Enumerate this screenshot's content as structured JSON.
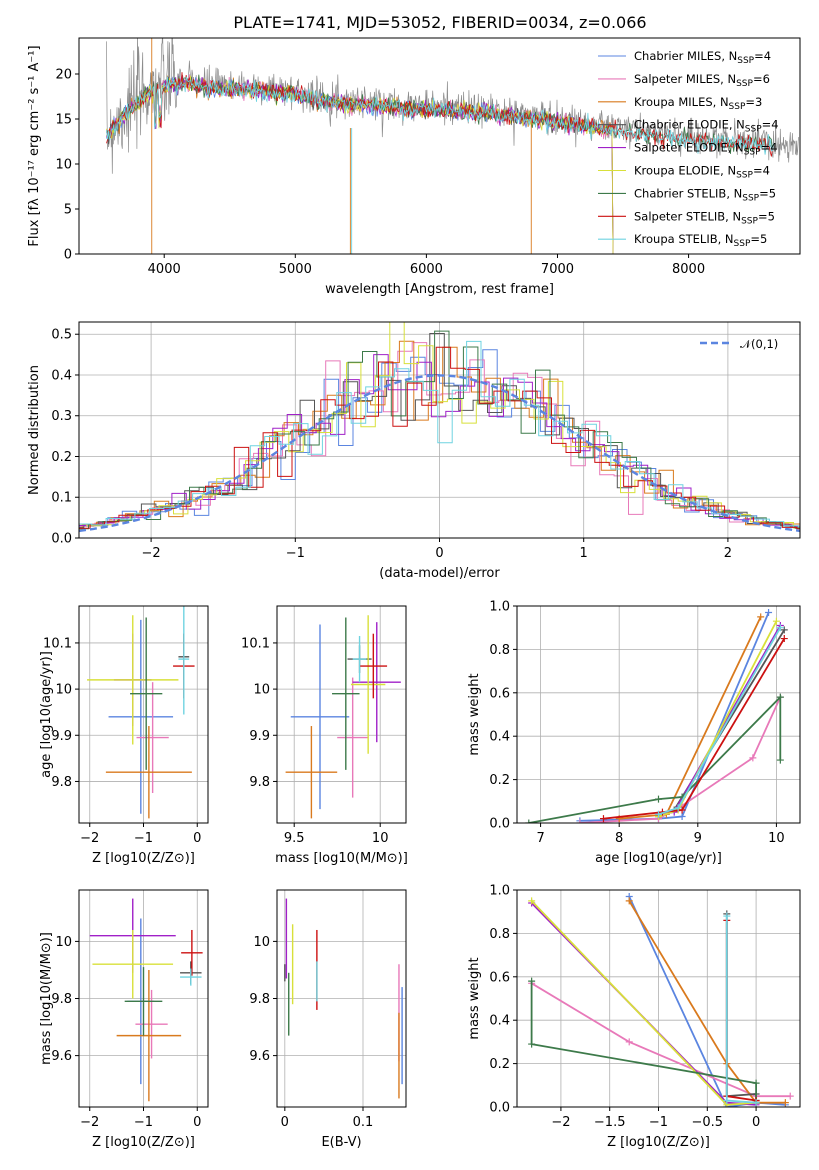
{
  "figure": {
    "title": "PLATE=1741, MJD=53052, FIBERID=0034, z=0.066"
  },
  "series_colors": {
    "Chabrier MILES": "#5b85e0",
    "Salpeter MILES": "#e879b9",
    "Kroupa MILES": "#d97a1e",
    "Chabrier ELODIE": "#555555",
    "Salpeter ELODIE": "#a020c8",
    "Kroupa ELODIE": "#d8e03a",
    "Chabrier STELIB": "#3d7a4a",
    "Salpeter STELIB": "#cc1111",
    "Kroupa STELIB": "#6fd3e0"
  },
  "chart_data": [
    {
      "id": "spectrum",
      "type": "line",
      "xlabel": "wavelength [Angstrom, rest frame]",
      "ylabel": "Flux [fλ 10⁻¹⁷ erg cm⁻² s⁻¹ A⁻¹]",
      "xlim": [
        3350,
        8850
      ],
      "ylim": [
        0,
        24
      ],
      "xticks": [
        4000,
        5000,
        6000,
        7000,
        8000
      ],
      "yticks": [
        0,
        5,
        10,
        15,
        20
      ],
      "grid": false,
      "legend_position": "top-right",
      "legend": [
        "Chabrier MILES, N_SSP=4",
        "Salpeter MILES, N_SSP=6",
        "Kroupa MILES, N_SSP=3",
        "Chabrier ELODIE, N_SSP=4",
        "Salpeter ELODIE, N_SSP=4",
        "Kroupa ELODIE, N_SSP=4",
        "Chabrier STELIB, N_SSP=5",
        "Salpeter STELIB, N_SSP=5",
        "Kroupa STELIB, N_SSP=5"
      ],
      "data_curve": {
        "x": [
          3560,
          3700,
          3900,
          4100,
          4300,
          4500,
          4700,
          4900,
          5100,
          5300,
          5500,
          5700,
          5900,
          6100,
          6300,
          6500,
          6700,
          6900,
          7100,
          7300,
          7500,
          7700,
          7900,
          8100,
          8400,
          8850
        ],
        "y": [
          13.5,
          15.8,
          18.5,
          19.5,
          19.0,
          18.7,
          18.6,
          18.3,
          17.8,
          17.2,
          17.0,
          16.8,
          16.5,
          16.4,
          16.2,
          16.0,
          15.6,
          15.3,
          14.8,
          14.4,
          13.9,
          13.6,
          13.2,
          13.0,
          12.6,
          12.2
        ]
      }
    },
    {
      "id": "residuals",
      "type": "histogram",
      "xlabel": "(data-model)/error",
      "ylabel": "Normed distribution",
      "xlim": [
        -2.5,
        2.5
      ],
      "ylim": [
        0,
        0.53
      ],
      "xticks": [
        -2,
        -1,
        0,
        1,
        2
      ],
      "yticks": [
        0.0,
        0.1,
        0.2,
        0.3,
        0.4,
        0.5
      ],
      "grid": true,
      "legend_position": "top-right",
      "reference_curve": "𝒩(0,1)",
      "reference": {
        "mean": 0,
        "sigma": 1
      }
    },
    {
      "id": "age-vs-Z",
      "type": "scatter",
      "xlabel": "Z [log10(Z/Z⊙)]",
      "ylabel": "age  [log10(age/yr)]",
      "xlim": [
        -2.2,
        0.2
      ],
      "ylim": [
        9.71,
        10.18
      ],
      "xticks": [
        -2,
        -1,
        0
      ],
      "yticks": [
        9.8,
        9.9,
        10.0,
        10.1
      ],
      "grid": true,
      "points": [
        {
          "series": "Chabrier MILES",
          "x": -1.05,
          "xerr": 0.6,
          "y": 9.94,
          "yerr": 0.21
        },
        {
          "series": "Salpeter MILES",
          "x": -0.83,
          "xerr": 0.3,
          "y": 9.895,
          "yerr": 0.12
        },
        {
          "series": "Kroupa MILES",
          "x": -0.9,
          "xerr": 0.8,
          "y": 9.82,
          "yerr": 0.1
        },
        {
          "series": "Chabrier ELODIE",
          "x": -0.25,
          "xerr": 0.1,
          "y": 10.07,
          "yerr": 0.05
        },
        {
          "series": "Salpeter ELODIE",
          "x": -1.2,
          "xerr": 0.35,
          "y": 10.02,
          "yerr": 0.1
        },
        {
          "series": "Kroupa ELODIE",
          "x": -1.2,
          "xerr": 0.85,
          "y": 10.02,
          "yerr": 0.14
        },
        {
          "series": "Chabrier STELIB",
          "x": -0.95,
          "xerr": 0.3,
          "y": 9.99,
          "yerr": 0.165
        },
        {
          "series": "Salpeter STELIB",
          "x": -0.25,
          "xerr": 0.2,
          "y": 10.05,
          "yerr": 0.07
        },
        {
          "series": "Kroupa STELIB",
          "x": -0.25,
          "xerr": 0.1,
          "y": 10.065,
          "yerr": 0.12
        }
      ]
    },
    {
      "id": "age-vs-mass",
      "type": "scatter",
      "xlabel": "mass [log10(M/M⊙)]",
      "ylabel": "",
      "xlim": [
        9.4,
        10.15
      ],
      "ylim": [
        9.71,
        10.18
      ],
      "xticks": [
        9.5,
        10.0
      ],
      "yticks": [
        9.8,
        9.9,
        10.0,
        10.1
      ],
      "grid": true,
      "points": [
        {
          "series": "Chabrier MILES",
          "x": 9.65,
          "xerr": 0.17,
          "y": 9.94,
          "yerr": 0.2
        },
        {
          "series": "Salpeter MILES",
          "x": 9.84,
          "xerr": 0.09,
          "y": 9.895,
          "yerr": 0.13
        },
        {
          "series": "Kroupa MILES",
          "x": 9.6,
          "xerr": 0.15,
          "y": 9.82,
          "yerr": 0.1
        },
        {
          "series": "Chabrier ELODIE",
          "x": 9.88,
          "xerr": 0.07,
          "y": 10.065,
          "yerr": 0.03
        },
        {
          "series": "Salpeter ELODIE",
          "x": 9.98,
          "xerr": 0.14,
          "y": 10.015,
          "yerr": 0.13
        },
        {
          "series": "Kroupa ELODIE",
          "x": 9.93,
          "xerr": 0.1,
          "y": 10.01,
          "yerr": 0.15
        },
        {
          "series": "Chabrier STELIB",
          "x": 9.8,
          "xerr": 0.08,
          "y": 9.99,
          "yerr": 0.165
        },
        {
          "series": "Salpeter STELIB",
          "x": 9.96,
          "xerr": 0.08,
          "y": 10.05,
          "yerr": 0.07
        },
        {
          "series": "Kroupa STELIB",
          "x": 9.88,
          "xerr": 0.04,
          "y": 10.065,
          "yerr": 0.05
        }
      ]
    },
    {
      "id": "massweight-vs-age",
      "type": "line",
      "xlabel": "age  [log10(age/yr)]",
      "ylabel": "mass weight",
      "xlim": [
        6.7,
        10.3
      ],
      "ylim": [
        0,
        1
      ],
      "xticks": [
        7,
        8,
        9,
        10
      ],
      "yticks": [
        0.0,
        0.2,
        0.4,
        0.6,
        0.8,
        1.0
      ],
      "grid": true,
      "series": [
        {
          "series": "Chabrier MILES",
          "x": [
            7.5,
            8.5,
            8.8,
            9.9
          ],
          "y": [
            0.01,
            0.02,
            0.03,
            0.97
          ]
        },
        {
          "series": "Salpeter MILES",
          "x": [
            7.5,
            8.0,
            8.5,
            8.8,
            9.7,
            10.05
          ],
          "y": [
            0.0,
            0.01,
            0.02,
            0.08,
            0.3,
            0.58
          ]
        },
        {
          "series": "Kroupa MILES",
          "x": [
            8.0,
            8.6,
            9.8
          ],
          "y": [
            0.02,
            0.04,
            0.95
          ]
        },
        {
          "series": "Chabrier ELODIE",
          "x": [
            8.5,
            8.7,
            10.1
          ],
          "y": [
            0.03,
            0.06,
            0.89
          ]
        },
        {
          "series": "Salpeter ELODIE",
          "x": [
            8.5,
            8.7,
            10.05
          ],
          "y": [
            0.04,
            0.05,
            0.91
          ]
        },
        {
          "series": "Kroupa ELODIE",
          "x": [
            8.5,
            8.75,
            10.0
          ],
          "y": [
            0.03,
            0.06,
            0.93
          ]
        },
        {
          "series": "Chabrier STELIB",
          "x": [
            6.85,
            8.5,
            8.8,
            10.05,
            10.05
          ],
          "y": [
            0.0,
            0.11,
            0.12,
            0.58,
            0.29
          ]
        },
        {
          "series": "Salpeter STELIB",
          "x": [
            7.8,
            8.55,
            8.8,
            10.1
          ],
          "y": [
            0.02,
            0.05,
            0.06,
            0.85
          ]
        },
        {
          "series": "Kroupa STELIB",
          "x": [
            8.5,
            8.75,
            10.05
          ],
          "y": [
            0.04,
            0.07,
            0.9
          ]
        }
      ]
    },
    {
      "id": "mass-vs-Z",
      "type": "scatter",
      "xlabel": "Z [log10(Z/Z⊙)]",
      "ylabel": "mass [log10(M/M⊙)]",
      "xlim": [
        -2.2,
        0.2
      ],
      "ylim": [
        9.42,
        10.18
      ],
      "xticks": [
        -2,
        -1,
        0
      ],
      "yticks": [
        9.6,
        9.8,
        10.0
      ],
      "grid": true,
      "points": [
        {
          "series": "Chabrier MILES",
          "x": -1.05,
          "xerr": 0.25,
          "y": 9.79,
          "yerr": 0.29
        },
        {
          "series": "Salpeter MILES",
          "x": -0.85,
          "xerr": 0.3,
          "y": 9.71,
          "yerr": 0.12
        },
        {
          "series": "Kroupa MILES",
          "x": -0.9,
          "xerr": 0.6,
          "y": 9.67,
          "yerr": 0.23
        },
        {
          "series": "Chabrier ELODIE",
          "x": -0.12,
          "xerr": 0.2,
          "y": 9.89,
          "yerr": 0.04
        },
        {
          "series": "Salpeter ELODIE",
          "x": -1.2,
          "xerr": 0.8,
          "y": 10.02,
          "yerr": 0.13
        },
        {
          "series": "Kroupa ELODIE",
          "x": -1.2,
          "xerr": 0.75,
          "y": 9.92,
          "yerr": 0.12
        },
        {
          "series": "Chabrier STELIB",
          "x": -1.0,
          "xerr": 0.35,
          "y": 9.79,
          "yerr": 0.12
        },
        {
          "series": "Salpeter STELIB",
          "x": -0.1,
          "xerr": 0.2,
          "y": 9.96,
          "yerr": 0.08
        },
        {
          "series": "Kroupa STELIB",
          "x": -0.12,
          "xerr": 0.2,
          "y": 9.875,
          "yerr": 0.03
        }
      ]
    },
    {
      "id": "mass-vs-EBV",
      "type": "scatter",
      "xlabel": "E(B-V)",
      "ylabel": "",
      "xlim": [
        -0.01,
        0.155
      ],
      "ylim": [
        9.42,
        10.18
      ],
      "xticks": [
        0.0,
        0.1
      ],
      "yticks": [
        9.6,
        9.8,
        10.0
      ],
      "grid": true,
      "points": [
        {
          "series": "Chabrier MILES",
          "x": 0.15,
          "xerr": 0,
          "y": 9.67,
          "yerr": 0.17
        },
        {
          "series": "Salpeter MILES",
          "x": 0.146,
          "xerr": 0,
          "y": 9.75,
          "yerr": 0.17
        },
        {
          "series": "Kroupa MILES",
          "x": 0.146,
          "xerr": 0,
          "y": 9.6,
          "yerr": 0.15
        },
        {
          "series": "Chabrier ELODIE",
          "x": 0.0,
          "xerr": 0,
          "y": 9.89,
          "yerr": 0.03
        },
        {
          "series": "Salpeter ELODIE",
          "x": 0.002,
          "xerr": 0,
          "y": 10.01,
          "yerr": 0.14
        },
        {
          "series": "Kroupa ELODIE",
          "x": 0.01,
          "xerr": 0,
          "y": 9.92,
          "yerr": 0.14
        },
        {
          "series": "Chabrier STELIB",
          "x": 0.005,
          "xerr": 0,
          "y": 9.78,
          "yerr": 0.11
        },
        {
          "series": "Salpeter STELIB",
          "x": 0.041,
          "xerr": 0,
          "y": 9.9,
          "yerr": 0.14
        },
        {
          "series": "Kroupa STELIB",
          "x": 0.041,
          "xerr": 0,
          "y": 9.86,
          "yerr": 0.07
        }
      ]
    },
    {
      "id": "massweight-vs-Z",
      "type": "line",
      "xlabel": "Z [log10(Z/Z⊙)]",
      "ylabel": "mass weight",
      "xlim": [
        -2.45,
        0.45
      ],
      "ylim": [
        0,
        1
      ],
      "xticks": [
        -2.0,
        -1.5,
        -1.0,
        -0.5,
        0.0
      ],
      "yticks": [
        0.0,
        0.2,
        0.4,
        0.6,
        0.8,
        1.0
      ],
      "grid": true,
      "series": [
        {
          "series": "Chabrier MILES",
          "x": [
            -1.3,
            -0.3,
            0.0,
            0.3
          ],
          "y": [
            0.97,
            0.0,
            0.02,
            0.01
          ]
        },
        {
          "series": "Salpeter MILES",
          "x": [
            -2.3,
            -1.3,
            0.0,
            0.35
          ],
          "y": [
            0.57,
            0.3,
            0.05,
            0.05
          ]
        },
        {
          "series": "Kroupa MILES",
          "x": [
            -1.3,
            -0.3,
            0.0,
            0.3
          ],
          "y": [
            0.95,
            0.2,
            0.02,
            0.02
          ]
        },
        {
          "series": "Chabrier ELODIE",
          "x": [
            -0.3,
            -0.3,
            0.0,
            0.0
          ],
          "y": [
            0.89,
            0.05,
            0.06,
            0.03
          ]
        },
        {
          "series": "Salpeter ELODIE",
          "x": [
            -2.3,
            -0.3,
            0.0
          ],
          "y": [
            0.94,
            0.02,
            0.01
          ]
        },
        {
          "series": "Kroupa ELODIE",
          "x": [
            -2.3,
            -0.3,
            0.0
          ],
          "y": [
            0.95,
            0.01,
            0.02
          ]
        },
        {
          "series": "Chabrier STELIB",
          "x": [
            -2.3,
            -2.3,
            0.0,
            0.0
          ],
          "y": [
            0.58,
            0.29,
            0.11,
            0.02
          ]
        },
        {
          "series": "Salpeter STELIB",
          "x": [
            -0.3,
            -0.3,
            0.0
          ],
          "y": [
            0.86,
            0.05,
            0.03
          ]
        },
        {
          "series": "Kroupa STELIB",
          "x": [
            -0.3,
            -0.3,
            0.0
          ],
          "y": [
            0.88,
            0.03,
            0.02
          ]
        }
      ]
    }
  ]
}
